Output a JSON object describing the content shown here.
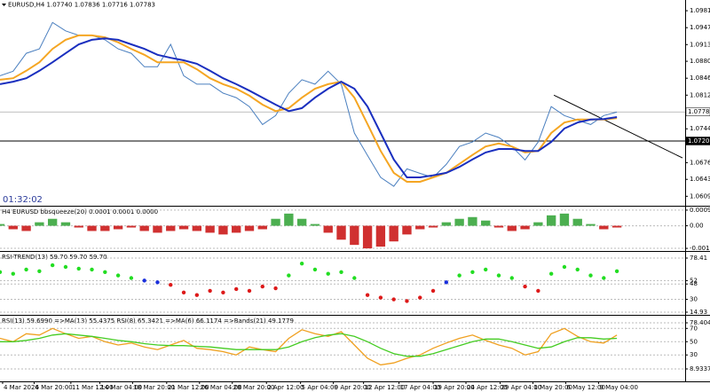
{
  "chart_data": [
    {
      "type": "line",
      "title": "EURUSD,H4  1.07740 1.07836 1.07716 1.07783",
      "clock": "01:32:02",
      "xlim": [
        0,
        52.2
      ],
      "ylim": [
        1.059,
        1.1003
      ],
      "yticks": [
        1.09815,
        1.09475,
        1.09135,
        {
          "value": 1.088,
          "label": "1.08800"
        },
        {
          "value": 1.0846,
          "label": "1.08460"
        },
        {
          "value": 1.0812,
          "label": "1.08120"
        },
        1.07445,
        1.06765,
        {
          "value": 1.0643,
          "label": "1.06430"
        },
        {
          "value": 1.0609,
          "label": "1.06090"
        }
      ],
      "hlines": [
        1.07783,
        {
          "value": 1.072,
          "label": "1.07200"
        }
      ],
      "trendline": {
        "x": [
          42.2,
          52
        ],
        "y": [
          1.0812,
          1.0686
        ]
      },
      "xticks": [
        {
          "value": 0.2,
          "label": "4 Mar 2024"
        },
        {
          "value": 2.6,
          "label": "6 Mar 20:00"
        },
        {
          "value": 5.4,
          "label": "11 Mar 12:00"
        },
        {
          "value": 7.6,
          "label": "14 Mar 04:00"
        },
        {
          "value": 10.1,
          "label": "18 Mar 20:00"
        },
        {
          "value": 12.7,
          "label": "21 Mar 12:00"
        },
        {
          "value": 15.2,
          "label": "26 Mar 04:00"
        },
        {
          "value": 17.7,
          "label": "28 Mar 20:00"
        },
        {
          "value": 20.3,
          "label": "2 Apr 12:00"
        },
        {
          "value": 22.9,
          "label": "5 Apr 04:00"
        },
        {
          "value": 25.4,
          "label": "9 Apr 20:00"
        },
        {
          "value": 27.7,
          "label": "12 Apr 12:00"
        },
        {
          "value": 30.4,
          "label": "17 Apr 04:00"
        },
        {
          "value": 33,
          "label": "19 Apr 20:00"
        },
        {
          "value": 35.5,
          "label": "24 Apr 12:00"
        },
        {
          "value": 38.1,
          "label": "29 Apr 04:00"
        },
        {
          "value": 40.6,
          "label": "1 May 20:00"
        },
        {
          "value": 43.1,
          "label": "6 May 12:00"
        },
        {
          "value": 45.6,
          "label": "9 May 04:00"
        }
      ],
      "series": [
        {
          "color": "#4a7fbf",
          "width": 1,
          "values": [
            1.0851,
            1.086,
            1.0896,
            1.0905,
            1.0958,
            1.0941,
            1.0932,
            1.0932,
            1.0923,
            1.0905,
            1.0896,
            1.0869,
            1.0869,
            1.0914,
            1.0851,
            1.0834,
            1.0834,
            1.0816,
            1.0807,
            1.0789,
            1.0753,
            1.0771,
            1.0816,
            1.0843,
            1.0834,
            1.086,
            1.0834,
            1.0736,
            1.0691,
            1.0647,
            1.0629,
            1.0664,
            1.0655,
            1.0647,
            1.0673,
            1.0709,
            1.0718,
            1.0736,
            1.0727,
            1.0709,
            1.0682,
            1.0718,
            1.0789,
            1.0771,
            1.0762,
            1.0753,
            1.0771,
            1.0778
          ]
        },
        {
          "color": "#f5a623",
          "width": 2,
          "values": [
            1.0843,
            1.0846,
            1.0861,
            1.0878,
            1.0905,
            1.0923,
            1.0932,
            1.0932,
            1.0928,
            1.0918,
            1.0905,
            1.0893,
            1.0878,
            1.0878,
            1.0878,
            1.0864,
            1.0846,
            1.0834,
            1.0825,
            1.0811,
            1.0793,
            1.078,
            1.0786,
            1.0807,
            1.0825,
            1.0834,
            1.0839,
            1.0807,
            1.0754,
            1.07,
            1.0656,
            1.0638,
            1.0638,
            1.0647,
            1.0656,
            1.0674,
            1.0692,
            1.0709,
            1.0715,
            1.0709,
            1.0697,
            1.07,
            1.0736,
            1.0757,
            1.0763,
            1.0763,
            1.0763,
            1.0766
          ]
        },
        {
          "color": "#1a2fbf",
          "width": 2,
          "values": [
            1.0834,
            1.0839,
            1.0846,
            1.0861,
            1.0878,
            1.0896,
            1.0914,
            1.0923,
            1.0926,
            1.0923,
            1.0914,
            1.0905,
            1.0893,
            1.0887,
            1.0882,
            1.0875,
            1.0861,
            1.0846,
            1.0834,
            1.0821,
            1.0807,
            1.0793,
            1.078,
            1.0786,
            1.0807,
            1.0825,
            1.0839,
            1.0825,
            1.0789,
            1.0736,
            1.0683,
            1.0647,
            1.0647,
            1.0651,
            1.0656,
            1.0668,
            1.0683,
            1.0697,
            1.0704,
            1.0704,
            1.07,
            1.07,
            1.0718,
            1.0745,
            1.0757,
            1.0763,
            1.0764,
            1.0768
          ]
        }
      ]
    },
    {
      "type": "bar",
      "title": "H4 EURUSD bbsqueeze(20) 0.0001 0.0001 0.0000",
      "ylim": [
        -0.00145,
        0.0011
      ],
      "yticks": [
        0.0009,
        {
          "value": 0,
          "label": "0.00"
        },
        -0.0013
      ],
      "colors": {
        "positive": "#4caf50",
        "negative": "#d03030"
      },
      "values": [
        0.0001,
        -0.0002,
        -0.0003,
        0.0002,
        0.0004,
        0.0002,
        -0.0001,
        -0.0003,
        -0.0003,
        -0.0002,
        -0.0001,
        -0.0003,
        -0.0004,
        -0.0003,
        -0.0002,
        -0.0003,
        -0.0004,
        -0.0005,
        -0.0004,
        -0.0003,
        -0.0002,
        0.0004,
        0.0007,
        0.0004,
        0.0001,
        -0.0004,
        -0.0008,
        -0.0011,
        -0.0013,
        -0.0012,
        -0.0009,
        -0.0005,
        -0.0002,
        -0.0001,
        0.0002,
        0.0004,
        0.0005,
        0.0003,
        -0.0001,
        -0.0003,
        -0.0002,
        0.0002,
        0.0006,
        0.0007,
        0.0004,
        0.0001,
        -0.0002,
        -0.0001
      ]
    },
    {
      "type": "scatter",
      "title": "RSI-TREND(13) 59.70 59.70 59.70",
      "ylim": [
        11.8,
        85.7
      ],
      "yticks": [
        78.41,
        52,
        48,
        30,
        14.93
      ],
      "color_rule": {
        "upper": 52,
        "lower": 48,
        "above": "#22dd22",
        "between": "#1a2fdd",
        "below": "#dd1a1a"
      },
      "values": [
        62,
        60,
        65,
        63,
        70,
        68,
        66,
        65,
        62,
        58,
        55,
        52,
        50,
        47,
        38,
        35,
        40,
        38,
        42,
        40,
        45,
        43,
        58,
        72,
        65,
        60,
        62,
        55,
        35,
        32,
        30,
        28,
        32,
        40,
        50,
        58,
        62,
        65,
        58,
        55,
        45,
        40,
        60,
        68,
        65,
        58,
        55,
        63
      ]
    },
    {
      "type": "line",
      "title": "RSI(13) 59.6990 =>MA(13) 55.4375 RSI(8) 65.3421 =>MA(6) 66.1174 =>Bands(21) 49.1779",
      "ylim": [
        -9.8,
        89.1
      ],
      "yticks": [
        78.4045,
        70,
        50,
        30,
        8.9337
      ],
      "series": [
        {
          "color": "#f0a020",
          "width": 1.3,
          "values": [
            55,
            50,
            62,
            60,
            70,
            62,
            55,
            58,
            50,
            45,
            48,
            42,
            38,
            45,
            52,
            40,
            38,
            35,
            30,
            42,
            38,
            35,
            55,
            68,
            62,
            58,
            65,
            45,
            25,
            15,
            18,
            25,
            30,
            40,
            48,
            55,
            60,
            52,
            45,
            40,
            30,
            35,
            62,
            70,
            58,
            50,
            48,
            60
          ]
        },
        {
          "color": "#44cc22",
          "width": 1.3,
          "values": [
            50,
            50,
            52,
            55,
            60,
            62,
            60,
            58,
            55,
            52,
            50,
            47,
            45,
            44,
            44,
            43,
            42,
            40,
            38,
            38,
            38,
            38,
            42,
            50,
            56,
            60,
            62,
            58,
            50,
            40,
            32,
            28,
            28,
            32,
            38,
            44,
            50,
            54,
            54,
            50,
            45,
            40,
            42,
            50,
            56,
            56,
            54,
            55
          ]
        }
      ]
    }
  ]
}
